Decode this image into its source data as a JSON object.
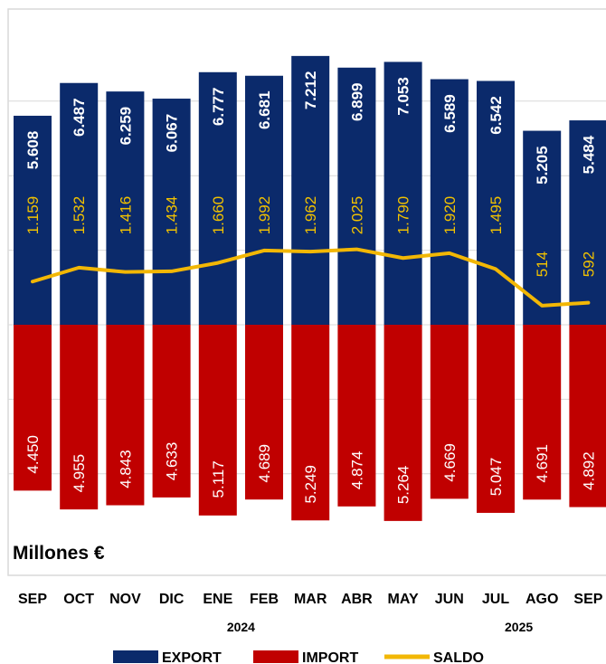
{
  "chart_data": {
    "type": "bar",
    "units_label": "Millones €",
    "categories": [
      "SEP",
      "OCT",
      "NOV",
      "DIC",
      "ENE",
      "FEB",
      "MAR",
      "ABR",
      "MAY",
      "JUN",
      "JUL",
      "AGO",
      "SEP"
    ],
    "year_labels": [
      {
        "text": "2024",
        "category_index": 4.5
      },
      {
        "text": "2025",
        "category_index": 10.5
      }
    ],
    "series": [
      {
        "name": "EXPORT",
        "kind": "bar-positive",
        "color": "#0b2a6b",
        "values": [
          5608,
          6487,
          6259,
          6067,
          6777,
          6681,
          7212,
          6899,
          7053,
          6589,
          6542,
          5205,
          5484
        ],
        "labels": [
          "5.608",
          "6.487",
          "6.259",
          "6.067",
          "6.777",
          "6.681",
          "7.212",
          "6.899",
          "7.053",
          "6.589",
          "6.542",
          "5.205",
          "5.484"
        ]
      },
      {
        "name": "IMPORT",
        "kind": "bar-negative",
        "color": "#c00000",
        "values": [
          4450,
          4955,
          4843,
          4633,
          5117,
          4689,
          5249,
          4874,
          5264,
          4669,
          5047,
          4691,
          4892
        ],
        "labels": [
          "4.450",
          "4.955",
          "4.843",
          "4.633",
          "5.117",
          "4.689",
          "5.249",
          "4.874",
          "5.264",
          "4.669",
          "5.047",
          "4.691",
          "4.892"
        ]
      },
      {
        "name": "SALDO",
        "kind": "line",
        "color": "#f2b705",
        "values": [
          1159,
          1532,
          1416,
          1434,
          1660,
          1992,
          1962,
          2025,
          1790,
          1920,
          1495,
          514,
          592
        ],
        "labels": [
          "1.159",
          "1.532",
          "1.416",
          "1.434",
          "1.660",
          "1.992",
          "1.962",
          "2.025",
          "1.790",
          "1.920",
          "1.495",
          "514",
          "592"
        ]
      }
    ],
    "ylim": [
      -6000,
      8000
    ],
    "grid": true,
    "legend_position": "bottom"
  }
}
